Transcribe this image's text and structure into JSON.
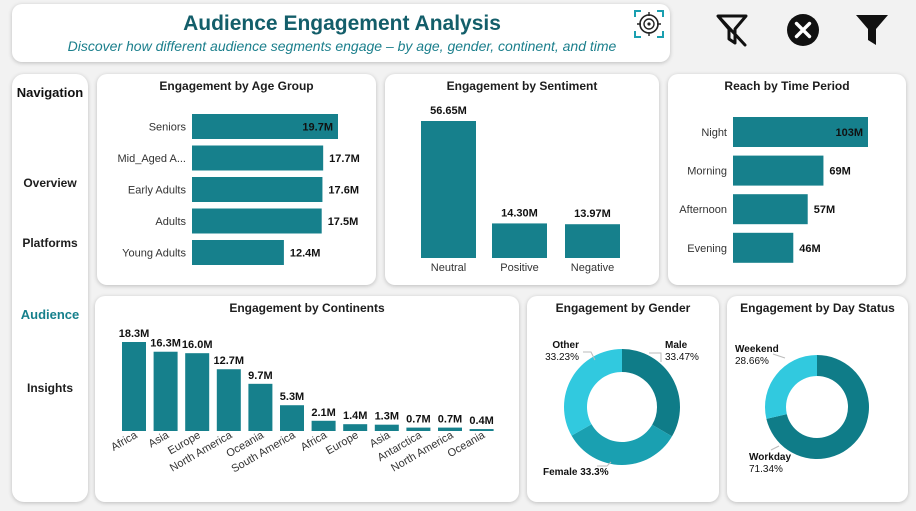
{
  "header": {
    "title": "Audience Engagement Analysis",
    "subtitle": "Discover how different audience segments engage – by age, gender, continent, and time"
  },
  "toolbar": {
    "icons": [
      "clear-filter-icon",
      "close-icon",
      "filter-icon"
    ]
  },
  "colors": {
    "bar": "#16808c",
    "title": "#135e6a",
    "donut_dark": "#0f7c88",
    "donut_mid": "#1aa0b1",
    "donut_light": "#31c9df"
  },
  "nav": {
    "title": "Navigation",
    "items": [
      {
        "label": "Overview",
        "active": false
      },
      {
        "label": "Platforms",
        "active": false
      },
      {
        "label": "Audience",
        "active": true
      },
      {
        "label": "Insights",
        "active": false
      }
    ]
  },
  "chart_data": [
    {
      "id": "age",
      "type": "bar",
      "orientation": "horizontal",
      "title": "Engagement by Age Group",
      "categories": [
        "Seniors",
        "Mid_Aged A...",
        "Early Adults",
        "Adults",
        "Young Adults"
      ],
      "values": [
        19.7,
        17.7,
        17.6,
        17.5,
        12.4
      ],
      "labels": [
        "19.7M",
        "17.7M",
        "17.6M",
        "17.5M",
        "12.4M"
      ],
      "unit": "M"
    },
    {
      "id": "sentiment",
      "type": "bar",
      "title": "Engagement by Sentiment",
      "categories": [
        "Neutral",
        "Positive",
        "Negative"
      ],
      "values": [
        56.65,
        14.3,
        13.97
      ],
      "labels": [
        "56.65M",
        "14.30M",
        "13.97M"
      ],
      "unit": "M"
    },
    {
      "id": "time",
      "type": "bar",
      "orientation": "horizontal",
      "title": "Reach by Time Period",
      "categories": [
        "Night",
        "Morning",
        "Afternoon",
        "Evening"
      ],
      "values": [
        103,
        69,
        57,
        46
      ],
      "labels": [
        "103M",
        "69M",
        "57M",
        "46M"
      ],
      "unit": "M"
    },
    {
      "id": "continents",
      "type": "bar",
      "title": "Engagement by Continents",
      "categories": [
        "Africa",
        "Asia",
        "Europe",
        "North America",
        "Oceania",
        "South America",
        "Africa",
        "Europe",
        "Asia",
        "Antarctica",
        "North America",
        "Oceania"
      ],
      "values": [
        18.3,
        16.3,
        16.0,
        12.7,
        9.7,
        5.3,
        2.1,
        1.4,
        1.3,
        0.7,
        0.7,
        0.4
      ],
      "labels": [
        "18.3M",
        "16.3M",
        "16.0M",
        "12.7M",
        "9.7M",
        "5.3M",
        "2.1M",
        "1.4M",
        "1.3M",
        "0.7M",
        "0.7M",
        "0.4M"
      ],
      "unit": "M"
    },
    {
      "id": "gender",
      "type": "pie",
      "title": "Engagement by Gender",
      "slices": [
        {
          "name": "Male",
          "value": 33.47,
          "label": "33.47%"
        },
        {
          "name": "Female",
          "value": 33.3,
          "label": "33.3%"
        },
        {
          "name": "Other",
          "value": 33.23,
          "label": "33.23%"
        }
      ]
    },
    {
      "id": "day",
      "type": "pie",
      "title": "Engagement by Day Status",
      "slices": [
        {
          "name": "Workday",
          "value": 71.34,
          "label": "71.34%"
        },
        {
          "name": "Weekend",
          "value": 28.66,
          "label": "28.66%"
        }
      ]
    }
  ]
}
